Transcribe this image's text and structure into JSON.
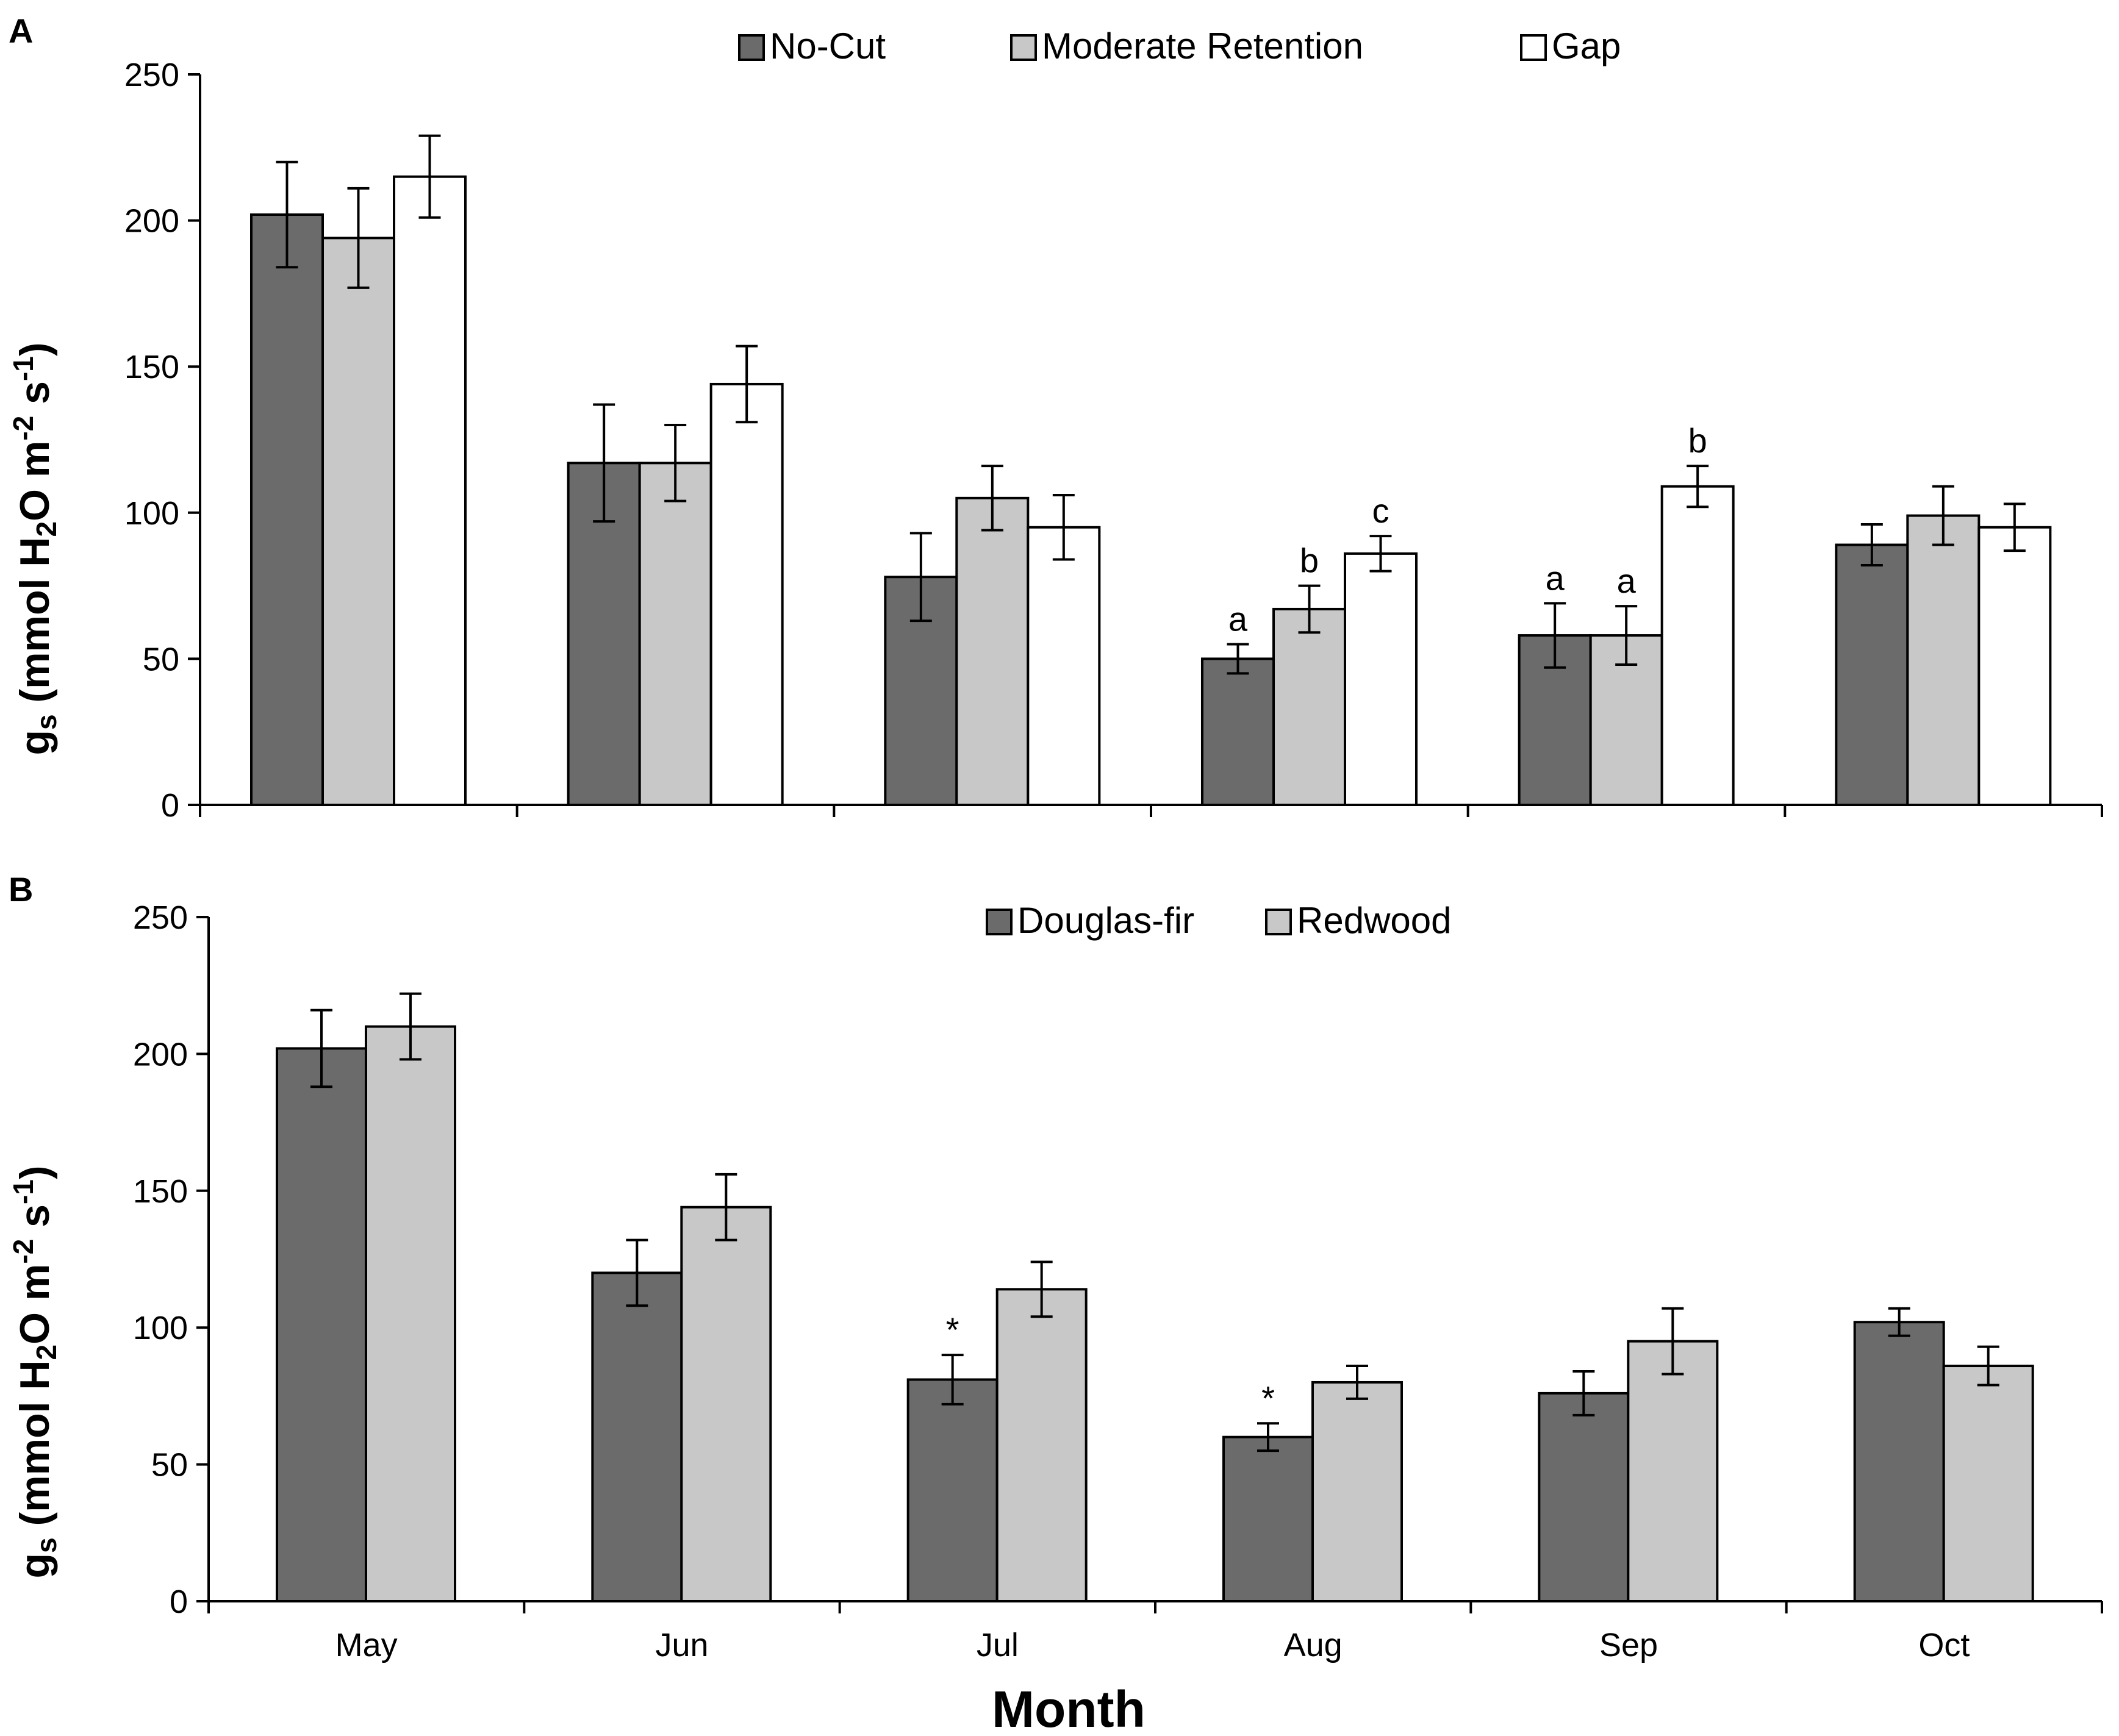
{
  "chart_data": [
    {
      "panel": "A",
      "type": "bar",
      "categories": [
        "May",
        "Jun",
        "Jul",
        "Aug",
        "Sep",
        "Oct"
      ],
      "series": [
        {
          "name": "No-Cut",
          "color": "#6b6b6b",
          "values": [
            202,
            117,
            78,
            50,
            58,
            89
          ],
          "errors": [
            18,
            20,
            15,
            5,
            11,
            7
          ],
          "annotations": [
            "",
            "",
            "",
            "a",
            "a",
            ""
          ]
        },
        {
          "name": "Moderate Retention",
          "color": "#c8c8c8",
          "values": [
            194,
            117,
            105,
            67,
            58,
            99
          ],
          "errors": [
            17,
            13,
            11,
            8,
            10,
            10
          ],
          "annotations": [
            "",
            "",
            "",
            "b",
            "a",
            ""
          ]
        },
        {
          "name": "Gap",
          "color": "#ffffff",
          "values": [
            215,
            144,
            95,
            86,
            109,
            95
          ],
          "errors": [
            14,
            13,
            11,
            6,
            7,
            8
          ],
          "annotations": [
            "",
            "",
            "",
            "c",
            "b",
            ""
          ]
        }
      ],
      "ylim": [
        0,
        250
      ],
      "yticks": [
        0,
        50,
        100,
        150,
        200,
        250
      ],
      "ylabel": {
        "main": "g",
        "sub": "s",
        "open": " (mmol H",
        "sub2": "2",
        "mid": "O m",
        "sup1": "-2",
        "mid2": " s",
        "sup2": "-1",
        "close": ")"
      },
      "xlabel": "",
      "legend_position": "top-center"
    },
    {
      "panel": "B",
      "type": "bar",
      "categories": [
        "May",
        "Jun",
        "Jul",
        "Aug",
        "Sep",
        "Oct"
      ],
      "series": [
        {
          "name": "Douglas-fir",
          "color": "#6b6b6b",
          "values": [
            202,
            120,
            81,
            60,
            76,
            102
          ],
          "errors": [
            14,
            12,
            9,
            5,
            8,
            5
          ],
          "annotations": [
            "",
            "",
            "*",
            "*",
            "",
            ""
          ]
        },
        {
          "name": "Redwood",
          "color": "#c8c8c8",
          "values": [
            210,
            144,
            114,
            80,
            95,
            86
          ],
          "errors": [
            12,
            12,
            10,
            6,
            12,
            7
          ],
          "annotations": [
            "",
            "",
            "",
            "",
            "",
            ""
          ]
        }
      ],
      "ylim": [
        0,
        250
      ],
      "yticks": [
        0,
        50,
        100,
        150,
        200,
        250
      ],
      "ylabel": {
        "main": "g",
        "sub": "s",
        "open": " (mmol H",
        "sub2": "2",
        "mid": "O m",
        "sup1": "-2",
        "mid2": " s",
        "sup2": "-1",
        "close": ")"
      },
      "xlabel": "Month",
      "legend_position": "top-center"
    }
  ]
}
